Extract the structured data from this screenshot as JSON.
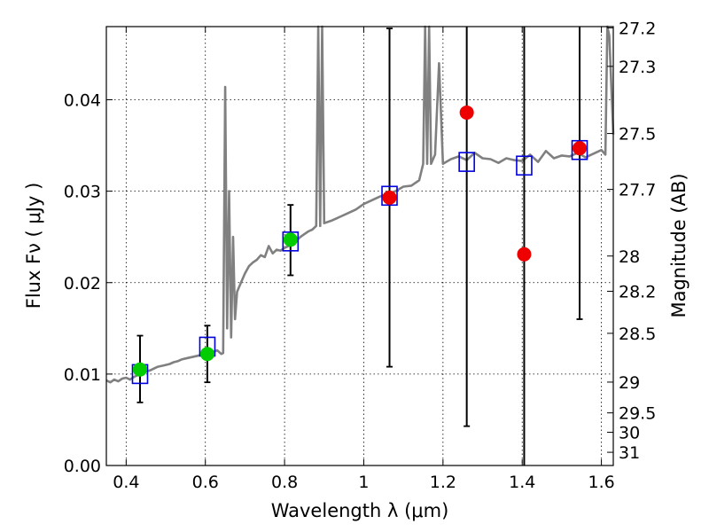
{
  "chart_data": {
    "type": "scatter",
    "xlabel": "Wavelength  λ (μm)",
    "ylabel": "Flux  Fν  ( μJy )",
    "y2label": "Magnitude (AB)",
    "xlim": [
      0.35,
      1.63
    ],
    "ylim": [
      0.0,
      0.048
    ],
    "grid": true,
    "x_ticks": [
      0.4,
      0.6,
      0.8,
      1.0,
      1.2,
      1.4,
      1.6
    ],
    "x_tick_labels": [
      "0.4",
      "0.6",
      "0.8",
      "1",
      "1.2",
      "1.4",
      "1.6"
    ],
    "y_ticks": [
      0.0,
      0.01,
      0.02,
      0.03,
      0.04
    ],
    "y_tick_labels": [
      "0.00",
      "0.01",
      "0.02",
      "0.03",
      "0.04"
    ],
    "mag_ticks": [
      "27.2",
      "27.3",
      "27.5",
      "27.7",
      "28",
      "28.2",
      "28.5",
      "29",
      "29.5",
      "30",
      "31"
    ],
    "colors": {
      "spectrum": "#808080",
      "model_boxes": "#0000dd",
      "observed_green": "#00cc00",
      "observed_red": "#ee0000",
      "errorbars": "#000000"
    },
    "spectrum": {
      "x": [
        0.35,
        0.36,
        0.37,
        0.38,
        0.39,
        0.4,
        0.41,
        0.42,
        0.43,
        0.44,
        0.45,
        0.46,
        0.47,
        0.48,
        0.49,
        0.5,
        0.51,
        0.52,
        0.53,
        0.54,
        0.55,
        0.56,
        0.57,
        0.58,
        0.59,
        0.6,
        0.61,
        0.62,
        0.63,
        0.64,
        0.645,
        0.65,
        0.655,
        0.66,
        0.665,
        0.67,
        0.675,
        0.68,
        0.69,
        0.7,
        0.71,
        0.72,
        0.73,
        0.74,
        0.75,
        0.76,
        0.77,
        0.78,
        0.79,
        0.8,
        0.81,
        0.82,
        0.83,
        0.84,
        0.85,
        0.86,
        0.87,
        0.88,
        0.885,
        0.89,
        0.895,
        0.9,
        0.92,
        0.94,
        0.96,
        0.98,
        1.0,
        1.02,
        1.04,
        1.06,
        1.08,
        1.1,
        1.12,
        1.14,
        1.15,
        1.155,
        1.16,
        1.165,
        1.17,
        1.18,
        1.19,
        1.2,
        1.22,
        1.24,
        1.26,
        1.28,
        1.3,
        1.32,
        1.34,
        1.36,
        1.38,
        1.4,
        1.42,
        1.44,
        1.46,
        1.48,
        1.5,
        1.52,
        1.54,
        1.56,
        1.58,
        1.6,
        1.61,
        1.615,
        1.62,
        1.63
      ],
      "y": [
        0.0093,
        0.0091,
        0.0094,
        0.0092,
        0.0095,
        0.0096,
        0.0094,
        0.0097,
        0.0099,
        0.0101,
        0.0103,
        0.0104,
        0.0106,
        0.0108,
        0.0109,
        0.011,
        0.0111,
        0.0113,
        0.0114,
        0.0116,
        0.0117,
        0.0118,
        0.0119,
        0.012,
        0.0121,
        0.0122,
        0.0123,
        0.0124,
        0.0126,
        0.0122,
        0.0123,
        0.0414,
        0.015,
        0.03,
        0.014,
        0.025,
        0.016,
        0.019,
        0.02,
        0.021,
        0.0218,
        0.0222,
        0.0225,
        0.023,
        0.0228,
        0.024,
        0.0232,
        0.0236,
        0.0235,
        0.0238,
        0.024,
        0.0243,
        0.0246,
        0.025,
        0.0253,
        0.0256,
        0.0258,
        0.0262,
        0.048,
        0.0262,
        0.048,
        0.0265,
        0.0268,
        0.0272,
        0.0276,
        0.028,
        0.0286,
        0.029,
        0.0294,
        0.0297,
        0.03,
        0.0305,
        0.0306,
        0.0312,
        0.033,
        0.048,
        0.033,
        0.048,
        0.033,
        0.034,
        0.044,
        0.033,
        0.0335,
        0.0338,
        0.0334,
        0.0342,
        0.0336,
        0.0335,
        0.0331,
        0.0336,
        0.0334,
        0.0333,
        0.034,
        0.0332,
        0.0344,
        0.0336,
        0.0339,
        0.0338,
        0.0342,
        0.0337,
        0.0341,
        0.0345,
        0.034,
        0.048,
        0.047,
        0.0362
      ]
    },
    "series": [
      {
        "marker": "square",
        "x": [
          0.435,
          0.605,
          0.815,
          1.065,
          1.26,
          1.405,
          1.545
        ],
        "values": [
          0.01,
          0.013,
          0.0245,
          0.0295,
          0.0332,
          0.0328,
          0.0345
        ]
      },
      {
        "marker": "circle",
        "x": [
          0.435,
          0.605,
          0.815
        ],
        "values": [
          0.0105,
          0.0122,
          0.0247
        ],
        "errors": [
          [
            0.0069,
            0.0142
          ],
          [
            0.0091,
            0.0153
          ],
          [
            0.0208,
            0.0285
          ]
        ]
      },
      {
        "marker": "circle",
        "x": [
          1.065,
          1.26,
          1.405,
          1.545
        ],
        "values": [
          0.0293,
          0.0386,
          0.0231,
          0.0347
        ],
        "errors": [
          [
            0.0108,
            0.0478
          ],
          [
            0.0043,
            0.048
          ],
          [
            0.0,
            0.048
          ],
          [
            0.016,
            0.048
          ]
        ]
      }
    ]
  }
}
